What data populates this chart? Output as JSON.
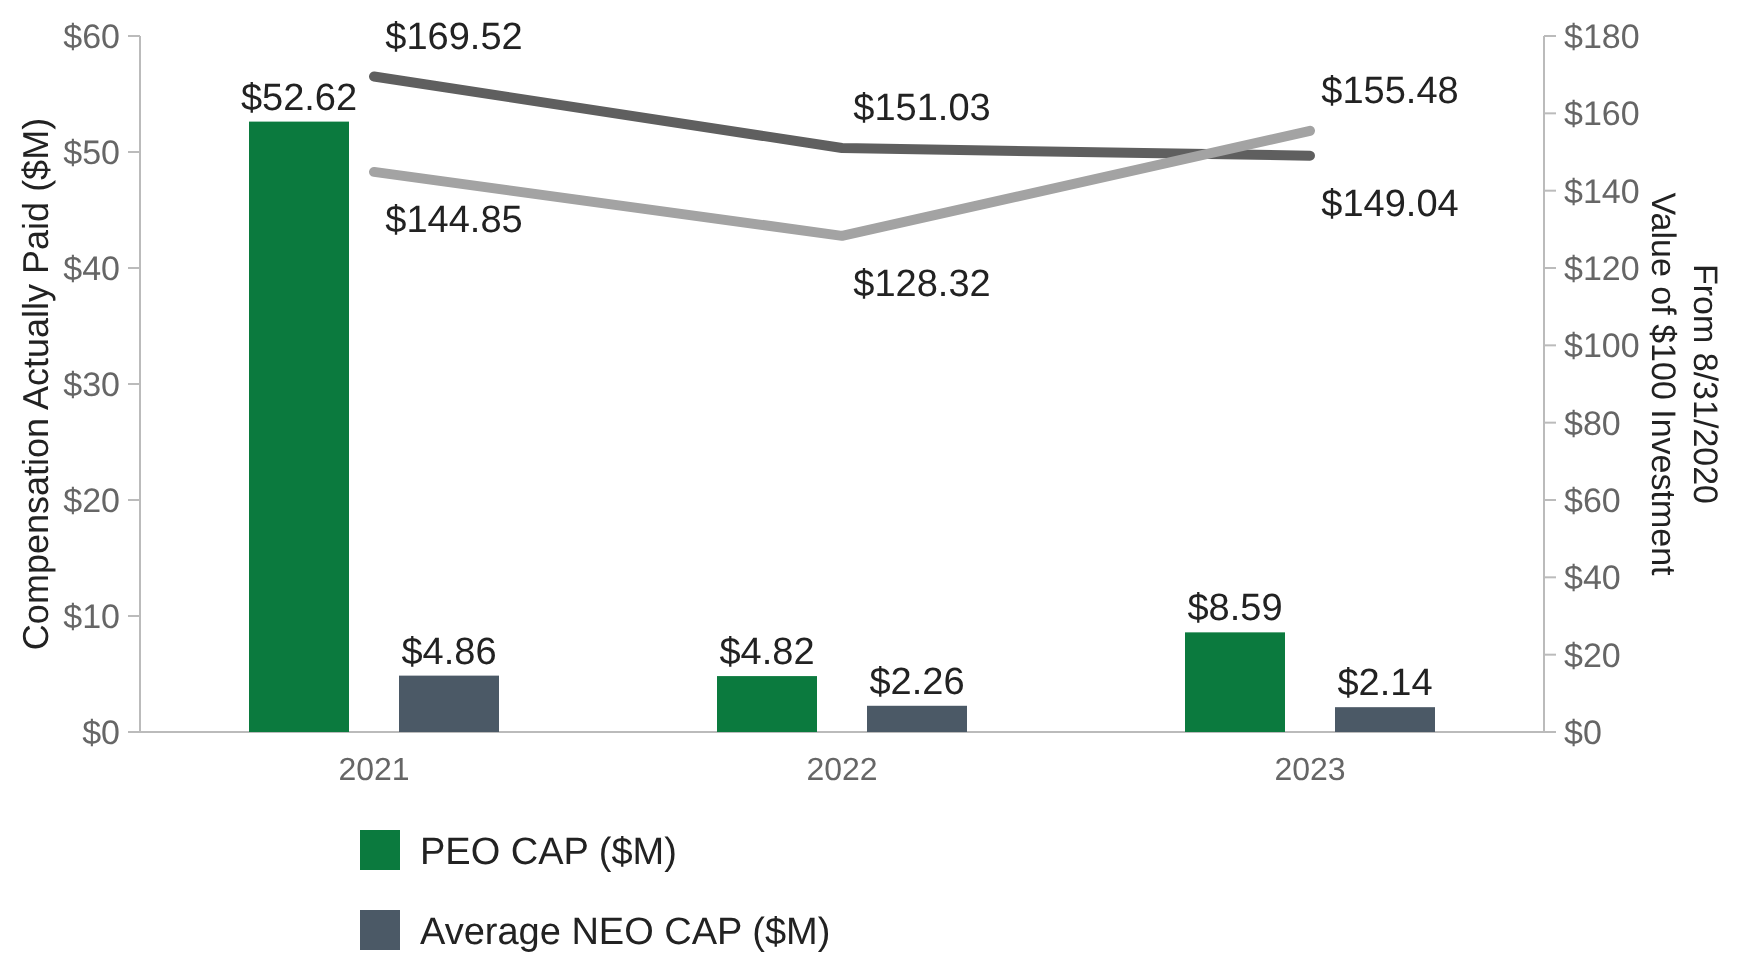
{
  "chart_data": {
    "type": "bar",
    "categories": [
      "2021",
      "2022",
      "2023"
    ],
    "ylabel": "Compensation Actually Paid ($M)",
    "y2label": "Value of $100 Investment\nFrom 8/31/2020",
    "ylim": [
      0,
      60
    ],
    "yticks": [
      {
        "value": 0,
        "label": "$0"
      },
      {
        "value": 10,
        "label": "$10"
      },
      {
        "value": 20,
        "label": "$20"
      },
      {
        "value": 30,
        "label": "$30"
      },
      {
        "value": 40,
        "label": "$40"
      },
      {
        "value": 50,
        "label": "$50"
      },
      {
        "value": 60,
        "label": "$60"
      }
    ],
    "y2lim": [
      0,
      180
    ],
    "y2ticks": [
      {
        "value": 0,
        "label": "$0"
      },
      {
        "value": 20,
        "label": "$20"
      },
      {
        "value": 40,
        "label": "$40"
      },
      {
        "value": 60,
        "label": "$60"
      },
      {
        "value": 80,
        "label": "$80"
      },
      {
        "value": 100,
        "label": "$100"
      },
      {
        "value": 120,
        "label": "$120"
      },
      {
        "value": 140,
        "label": "$140"
      },
      {
        "value": 160,
        "label": "$160"
      },
      {
        "value": 180,
        "label": "$180"
      }
    ],
    "series": [
      {
        "name": "PEO CAP ($M)",
        "color": "#0b7a3e",
        "values": [
          52.62,
          4.82,
          8.59
        ],
        "value_labels": [
          "$52.62",
          "$4.82",
          "$8.59"
        ]
      },
      {
        "name": "Average NEO CAP ($M)",
        "color": "#4b5966",
        "values": [
          4.86,
          2.26,
          2.14
        ],
        "value_labels": [
          "$4.86",
          "$2.26",
          "$2.14"
        ]
      },
      {
        "type": "line",
        "axis": "y2",
        "color": "#5f5f5f",
        "values": [
          169.52,
          151.03,
          149.04
        ],
        "value_labels": [
          "$169.52",
          "$151.03",
          "$149.04"
        ]
      },
      {
        "type": "line",
        "axis": "y2",
        "color": "#a3a3a3",
        "values": [
          144.85,
          128.32,
          155.48
        ],
        "value_labels": [
          "$144.85",
          "$128.32",
          "$155.48"
        ]
      }
    ],
    "legend": "bottom",
    "grid": false
  }
}
